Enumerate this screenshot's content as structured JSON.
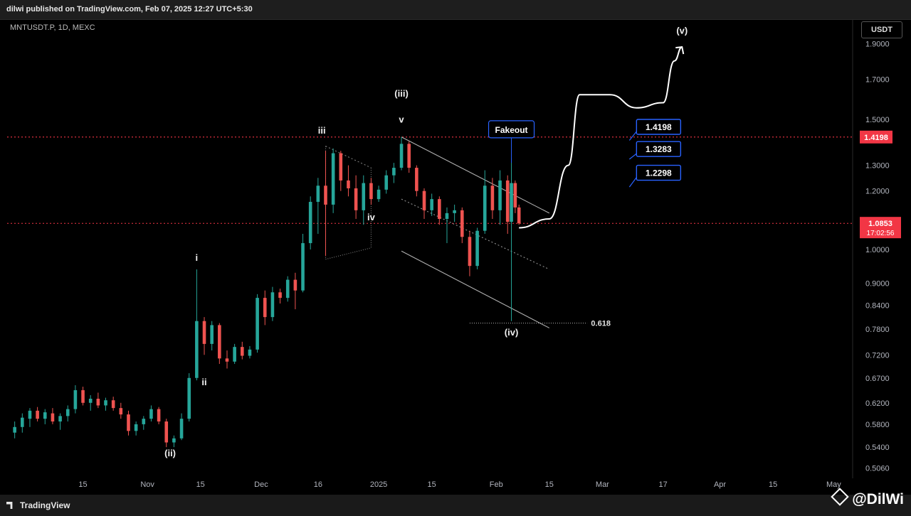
{
  "header": {
    "published": "dilwi published on TradingView.com, Feb 07, 2025 12:27 UTC+5:30"
  },
  "symbol": {
    "title": "MNTUSDT.P, 1D, MEXC"
  },
  "currency_button": "USDT",
  "footer": {
    "logo": "TradingView",
    "watermark": "@DilWi"
  },
  "colors": {
    "up": "#26a69a",
    "down": "#ef5350",
    "bg": "#000000",
    "accent": "#2962ff",
    "level": "#f23645"
  },
  "chart_data": {
    "type": "candlestick",
    "y_scale": "log",
    "ylim": [
      0.49,
      2.05
    ],
    "xlim": [
      "2024-09-25",
      "2025-05-06"
    ],
    "y_ticks": [
      "1.9000",
      "1.7000",
      "1.5000",
      "1.3000",
      "1.2000",
      "1.0000",
      "0.9000",
      "0.8400",
      "0.7800",
      "0.7200",
      "0.6700",
      "0.6200",
      "0.5800",
      "0.5400",
      "0.5060"
    ],
    "x_ticks": [
      {
        "label": "15",
        "date": "2024-10-15"
      },
      {
        "label": "Nov",
        "date": "2024-11-01"
      },
      {
        "label": "15",
        "date": "2024-11-15"
      },
      {
        "label": "Dec",
        "date": "2024-12-01"
      },
      {
        "label": "16",
        "date": "2024-12-16"
      },
      {
        "label": "2025",
        "date": "2025-01-01"
      },
      {
        "label": "15",
        "date": "2025-01-15"
      },
      {
        "label": "Feb",
        "date": "2025-02-01"
      },
      {
        "label": "15",
        "date": "2025-02-15"
      },
      {
        "label": "Mar",
        "date": "2025-03-01"
      },
      {
        "label": "17",
        "date": "2025-03-17"
      },
      {
        "label": "Apr",
        "date": "2025-04-01"
      },
      {
        "label": "15",
        "date": "2025-04-15"
      },
      {
        "label": "May",
        "date": "2025-05-01"
      }
    ],
    "candles": [
      {
        "x": "2024-09-27",
        "o": 0.565,
        "h": 0.585,
        "l": 0.555,
        "c": 0.575
      },
      {
        "x": "2024-09-29",
        "o": 0.575,
        "h": 0.6,
        "l": 0.565,
        "c": 0.592
      },
      {
        "x": "2024-10-01",
        "o": 0.59,
        "h": 0.61,
        "l": 0.575,
        "c": 0.605
      },
      {
        "x": "2024-10-03",
        "o": 0.605,
        "h": 0.612,
        "l": 0.585,
        "c": 0.59
      },
      {
        "x": "2024-10-05",
        "o": 0.59,
        "h": 0.608,
        "l": 0.58,
        "c": 0.602
      },
      {
        "x": "2024-10-07",
        "o": 0.6,
        "h": 0.61,
        "l": 0.58,
        "c": 0.585
      },
      {
        "x": "2024-10-09",
        "o": 0.585,
        "h": 0.6,
        "l": 0.57,
        "c": 0.595
      },
      {
        "x": "2024-10-11",
        "o": 0.595,
        "h": 0.615,
        "l": 0.585,
        "c": 0.608
      },
      {
        "x": "2024-10-13",
        "o": 0.608,
        "h": 0.655,
        "l": 0.6,
        "c": 0.645
      },
      {
        "x": "2024-10-15",
        "o": 0.645,
        "h": 0.652,
        "l": 0.615,
        "c": 0.62
      },
      {
        "x": "2024-10-17",
        "o": 0.62,
        "h": 0.635,
        "l": 0.605,
        "c": 0.628
      },
      {
        "x": "2024-10-19",
        "o": 0.628,
        "h": 0.64,
        "l": 0.61,
        "c": 0.615
      },
      {
        "x": "2024-10-21",
        "o": 0.615,
        "h": 0.63,
        "l": 0.605,
        "c": 0.625
      },
      {
        "x": "2024-10-23",
        "o": 0.625,
        "h": 0.632,
        "l": 0.605,
        "c": 0.61
      },
      {
        "x": "2024-10-25",
        "o": 0.61,
        "h": 0.62,
        "l": 0.59,
        "c": 0.598
      },
      {
        "x": "2024-10-27",
        "o": 0.598,
        "h": 0.605,
        "l": 0.56,
        "c": 0.568
      },
      {
        "x": "2024-10-29",
        "o": 0.568,
        "h": 0.585,
        "l": 0.56,
        "c": 0.58
      },
      {
        "x": "2024-10-31",
        "o": 0.58,
        "h": 0.595,
        "l": 0.57,
        "c": 0.59
      },
      {
        "x": "2024-11-02",
        "o": 0.59,
        "h": 0.615,
        "l": 0.585,
        "c": 0.608
      },
      {
        "x": "2024-11-04",
        "o": 0.608,
        "h": 0.612,
        "l": 0.58,
        "c": 0.585
      },
      {
        "x": "2024-11-06",
        "o": 0.585,
        "h": 0.59,
        "l": 0.54,
        "c": 0.548
      },
      {
        "x": "2024-11-08",
        "o": 0.548,
        "h": 0.56,
        "l": 0.54,
        "c": 0.555
      },
      {
        "x": "2024-11-10",
        "o": 0.555,
        "h": 0.6,
        "l": 0.552,
        "c": 0.59
      },
      {
        "x": "2024-11-12",
        "o": 0.59,
        "h": 0.68,
        "l": 0.585,
        "c": 0.67
      },
      {
        "x": "2024-11-14",
        "o": 0.67,
        "h": 0.94,
        "l": 0.665,
        "c": 0.8
      },
      {
        "x": "2024-11-16",
        "o": 0.8,
        "h": 0.81,
        "l": 0.72,
        "c": 0.745
      },
      {
        "x": "2024-11-18",
        "o": 0.745,
        "h": 0.8,
        "l": 0.73,
        "c": 0.79
      },
      {
        "x": "2024-11-20",
        "o": 0.79,
        "h": 0.795,
        "l": 0.7,
        "c": 0.712
      },
      {
        "x": "2024-11-22",
        "o": 0.712,
        "h": 0.73,
        "l": 0.69,
        "c": 0.705
      },
      {
        "x": "2024-11-24",
        "o": 0.705,
        "h": 0.745,
        "l": 0.7,
        "c": 0.738
      },
      {
        "x": "2024-11-26",
        "o": 0.738,
        "h": 0.75,
        "l": 0.71,
        "c": 0.718
      },
      {
        "x": "2024-11-28",
        "o": 0.718,
        "h": 0.74,
        "l": 0.712,
        "c": 0.732
      },
      {
        "x": "2024-11-30",
        "o": 0.732,
        "h": 0.87,
        "l": 0.725,
        "c": 0.86
      },
      {
        "x": "2024-12-02",
        "o": 0.86,
        "h": 0.88,
        "l": 0.79,
        "c": 0.81
      },
      {
        "x": "2024-12-04",
        "o": 0.81,
        "h": 0.89,
        "l": 0.8,
        "c": 0.875
      },
      {
        "x": "2024-12-06",
        "o": 0.875,
        "h": 0.885,
        "l": 0.845,
        "c": 0.86
      },
      {
        "x": "2024-12-08",
        "o": 0.86,
        "h": 0.92,
        "l": 0.85,
        "c": 0.91
      },
      {
        "x": "2024-12-10",
        "o": 0.91,
        "h": 0.93,
        "l": 0.83,
        "c": 0.88
      },
      {
        "x": "2024-12-12",
        "o": 0.88,
        "h": 1.05,
        "l": 0.875,
        "c": 1.02
      },
      {
        "x": "2024-12-14",
        "o": 1.02,
        "h": 1.18,
        "l": 1.0,
        "c": 1.16
      },
      {
        "x": "2024-12-16",
        "o": 1.16,
        "h": 1.25,
        "l": 1.05,
        "c": 1.22
      },
      {
        "x": "2024-12-18",
        "o": 1.22,
        "h": 1.36,
        "l": 0.98,
        "c": 1.15
      },
      {
        "x": "2024-12-20",
        "o": 1.15,
        "h": 1.37,
        "l": 1.12,
        "c": 1.35
      },
      {
        "x": "2024-12-22",
        "o": 1.35,
        "h": 1.36,
        "l": 1.2,
        "c": 1.24
      },
      {
        "x": "2024-12-24",
        "o": 1.24,
        "h": 1.3,
        "l": 1.18,
        "c": 1.21
      },
      {
        "x": "2024-12-26",
        "o": 1.21,
        "h": 1.26,
        "l": 1.1,
        "c": 1.13
      },
      {
        "x": "2024-12-28",
        "o": 1.13,
        "h": 1.26,
        "l": 1.08,
        "c": 1.23
      },
      {
        "x": "2024-12-30",
        "o": 1.23,
        "h": 1.25,
        "l": 1.15,
        "c": 1.17
      },
      {
        "x": "2025-01-01",
        "o": 1.17,
        "h": 1.22,
        "l": 1.16,
        "c": 1.205
      },
      {
        "x": "2025-01-03",
        "o": 1.205,
        "h": 1.28,
        "l": 1.19,
        "c": 1.26
      },
      {
        "x": "2025-01-05",
        "o": 1.26,
        "h": 1.31,
        "l": 1.23,
        "c": 1.29
      },
      {
        "x": "2025-01-07",
        "o": 1.29,
        "h": 1.42,
        "l": 1.28,
        "c": 1.39
      },
      {
        "x": "2025-01-09",
        "o": 1.39,
        "h": 1.4,
        "l": 1.27,
        "c": 1.29
      },
      {
        "x": "2025-01-11",
        "o": 1.29,
        "h": 1.3,
        "l": 1.18,
        "c": 1.2
      },
      {
        "x": "2025-01-13",
        "o": 1.2,
        "h": 1.21,
        "l": 1.1,
        "c": 1.13
      },
      {
        "x": "2025-01-15",
        "o": 1.13,
        "h": 1.19,
        "l": 1.11,
        "c": 1.17
      },
      {
        "x": "2025-01-17",
        "o": 1.17,
        "h": 1.18,
        "l": 1.08,
        "c": 1.1
      },
      {
        "x": "2025-01-19",
        "o": 1.1,
        "h": 1.14,
        "l": 1.02,
        "c": 1.12
      },
      {
        "x": "2025-01-21",
        "o": 1.12,
        "h": 1.15,
        "l": 1.09,
        "c": 1.13
      },
      {
        "x": "2025-01-23",
        "o": 1.13,
        "h": 1.14,
        "l": 1.02,
        "c": 1.04
      },
      {
        "x": "2025-01-25",
        "o": 1.04,
        "h": 1.06,
        "l": 0.92,
        "c": 0.95
      },
      {
        "x": "2025-01-27",
        "o": 0.95,
        "h": 1.07,
        "l": 0.94,
        "c": 1.06
      },
      {
        "x": "2025-01-29",
        "o": 1.06,
        "h": 1.28,
        "l": 1.05,
        "c": 1.22
      },
      {
        "x": "2025-01-31",
        "o": 1.22,
        "h": 1.25,
        "l": 1.1,
        "c": 1.13
      },
      {
        "x": "2025-02-02",
        "o": 1.13,
        "h": 1.28,
        "l": 1.08,
        "c": 1.24
      },
      {
        "x": "2025-02-04",
        "o": 1.24,
        "h": 1.26,
        "l": 1.05,
        "c": 1.09
      },
      {
        "x": "2025-02-05",
        "o": 1.09,
        "h": 1.33,
        "l": 0.8,
        "c": 1.23
      },
      {
        "x": "2025-02-06",
        "o": 1.23,
        "h": 1.24,
        "l": 1.12,
        "c": 1.14
      },
      {
        "x": "2025-02-07",
        "o": 1.14,
        "h": 1.15,
        "l": 1.08,
        "c": 1.085
      }
    ],
    "current_price": {
      "value": "1.0853",
      "countdown": "17:02:56"
    },
    "level_line": {
      "value": 1.4198,
      "label": "1.4198"
    },
    "targets": [
      "1.4198",
      "1.3283",
      "1.2298"
    ],
    "fib": {
      "label": "0.618",
      "value": 0.795
    },
    "wave_labels": [
      {
        "text": "i",
        "x": "2024-11-14",
        "y": 0.965
      },
      {
        "text": "ii",
        "x": "2024-11-16",
        "y": 0.655
      },
      {
        "text": "(ii)",
        "x": "2024-11-07",
        "y": 0.525
      },
      {
        "text": "iii",
        "x": "2024-12-17",
        "y": 1.435
      },
      {
        "text": "iv",
        "x": "2024-12-30",
        "y": 1.095
      },
      {
        "text": "v",
        "x": "2025-01-07",
        "y": 1.485
      },
      {
        "text": "(iii)",
        "x": "2025-01-07",
        "y": 1.61
      },
      {
        "text": "Fakeout",
        "x": "2025-02-05",
        "y": 1.445
      },
      {
        "text": "(iv)",
        "x": "2025-02-05",
        "y": 0.765
      },
      {
        "text": "(v)",
        "x": "2025-03-22",
        "y": 1.96
      }
    ]
  }
}
